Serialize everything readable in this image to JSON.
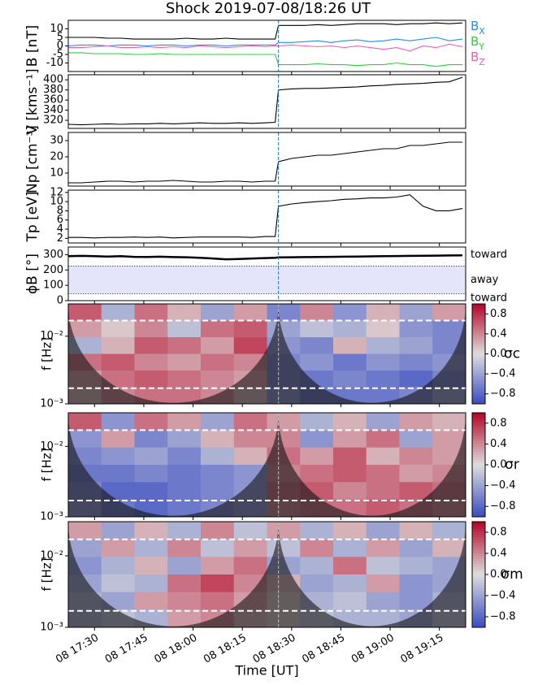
{
  "chart_data": [
    {
      "type": "line",
      "title": "Shock 2019-07-08/18:26 UT",
      "ylabel": "B [nT]",
      "ylim": [
        -15,
        15
      ],
      "yticks": [
        -10,
        -5,
        0,
        5,
        10
      ],
      "x": [
        "17:22",
        "17:26",
        "17:30",
        "17:34",
        "17:38",
        "17:42",
        "17:46",
        "17:50",
        "17:54",
        "17:58",
        "18:02",
        "18:06",
        "18:10",
        "18:14",
        "18:18",
        "18:22",
        "18:25",
        "18:26",
        "18:30",
        "18:34",
        "18:38",
        "18:42",
        "18:46",
        "18:50",
        "18:54",
        "18:58",
        "19:02",
        "19:06",
        "19:10",
        "19:14",
        "19:18",
        "19:22"
      ],
      "series": [
        {
          "color": "#000000",
          "values": [
            5,
            5,
            5,
            4.5,
            4.5,
            4,
            4,
            4,
            4,
            4.5,
            4,
            4,
            4.5,
            4,
            4,
            4,
            4,
            12,
            12,
            12,
            12.5,
            12,
            12.5,
            13,
            13,
            13,
            12.5,
            13,
            13,
            13.5,
            13,
            13.5
          ]
        },
        {
          "name": "BX",
          "color": "#1f8fe8",
          "values": [
            0,
            0.5,
            0.5,
            0,
            0.5,
            0.5,
            0,
            0.5,
            0.5,
            0,
            0.5,
            0.5,
            0,
            0.5,
            0.5,
            0.5,
            0.5,
            2,
            2,
            2.5,
            3,
            2,
            3,
            3.5,
            2.5,
            3,
            4,
            3,
            4,
            5,
            3,
            4
          ]
        },
        {
          "name": "BY",
          "color": "#2ecc40",
          "values": [
            -4,
            -4,
            -4.5,
            -4.5,
            -4.5,
            -5,
            -5,
            -4.5,
            -5,
            -5,
            -5,
            -5,
            -5,
            -5,
            -5,
            -5,
            -5,
            -11,
            -11,
            -11,
            -10.5,
            -11,
            -11,
            -11.5,
            -11,
            -11,
            -10,
            -11,
            -11,
            -12,
            -11,
            -11
          ]
        },
        {
          "name": "BZ",
          "color": "#ee5fb4",
          "values": [
            -1,
            -1,
            -0.5,
            0,
            -1,
            -1,
            -0.5,
            -1,
            -0.5,
            -1,
            0,
            -0.5,
            -1,
            -0.5,
            0,
            -0.5,
            0,
            0,
            0.5,
            0,
            -0.5,
            0,
            -1,
            0,
            -1,
            -2,
            -1,
            -3,
            0,
            -1,
            1,
            -0.5
          ]
        }
      ]
    },
    {
      "type": "line",
      "ylabel": "V [kms⁻¹]",
      "ylim": [
        304,
        410
      ],
      "yticks": [
        320,
        340,
        360,
        380,
        400
      ],
      "x": [
        "17:22",
        "17:26",
        "17:30",
        "17:34",
        "17:38",
        "17:42",
        "17:46",
        "17:50",
        "17:54",
        "17:58",
        "18:02",
        "18:06",
        "18:10",
        "18:14",
        "18:18",
        "18:22",
        "18:25",
        "18:26",
        "18:30",
        "18:34",
        "18:38",
        "18:42",
        "18:46",
        "18:50",
        "18:54",
        "18:58",
        "19:02",
        "19:06",
        "19:10",
        "19:14",
        "19:18",
        "19:22"
      ],
      "series": [
        {
          "color": "#000000",
          "values": [
            312,
            311,
            312,
            313,
            312,
            313,
            313,
            314,
            313,
            314,
            315,
            314,
            314,
            315,
            314,
            315,
            316,
            380,
            382,
            383,
            383,
            384,
            385,
            386,
            388,
            389,
            391,
            392,
            393,
            395,
            396,
            405
          ]
        }
      ]
    },
    {
      "type": "line",
      "ylabel": "Np [cm⁻³]",
      "ylim": [
        2,
        35
      ],
      "yticks": [
        10,
        20,
        30
      ],
      "x": [
        "17:22",
        "17:26",
        "17:30",
        "17:34",
        "17:38",
        "17:42",
        "17:46",
        "17:50",
        "17:54",
        "17:58",
        "18:02",
        "18:06",
        "18:10",
        "18:14",
        "18:18",
        "18:22",
        "18:25",
        "18:26",
        "18:30",
        "18:34",
        "18:38",
        "18:42",
        "18:46",
        "18:50",
        "18:54",
        "18:58",
        "19:02",
        "19:06",
        "19:10",
        "19:14",
        "19:18",
        "19:22"
      ],
      "series": [
        {
          "color": "#000000",
          "values": [
            4,
            4,
            4.5,
            5,
            5,
            4.5,
            5,
            5,
            5.5,
            5,
            4.5,
            4.5,
            5,
            5,
            4.5,
            5,
            5,
            17,
            19,
            20,
            21,
            21,
            22,
            23,
            24,
            25,
            25,
            27,
            27,
            28,
            29,
            29
          ]
        }
      ]
    },
    {
      "type": "line",
      "ylabel": "Tp [eV]",
      "ylim": [
        1,
        12.5
      ],
      "yticks": [
        2,
        4,
        6,
        8,
        10,
        12
      ],
      "x": [
        "17:22",
        "17:26",
        "17:30",
        "17:34",
        "17:38",
        "17:42",
        "17:46",
        "17:50",
        "17:54",
        "17:58",
        "18:02",
        "18:06",
        "18:10",
        "18:14",
        "18:18",
        "18:22",
        "18:25",
        "18:26",
        "18:30",
        "18:34",
        "18:38",
        "18:42",
        "18:46",
        "18:50",
        "18:54",
        "18:58",
        "19:02",
        "19:06",
        "19:10",
        "19:14",
        "19:18",
        "19:22"
      ],
      "series": [
        {
          "color": "#000000",
          "values": [
            2.2,
            2.2,
            2.1,
            2.2,
            2.2,
            2.3,
            2.2,
            2.3,
            2.1,
            2.2,
            2.3,
            2.3,
            2.3,
            2.3,
            2.2,
            2.4,
            2.4,
            9,
            9.5,
            9.8,
            10,
            10.2,
            10.5,
            10.6,
            10.8,
            10.8,
            11,
            11.5,
            9,
            8,
            8,
            8.5
          ]
        }
      ]
    },
    {
      "type": "line",
      "ylabel": "ϕB [°]",
      "ylim": [
        0,
        350
      ],
      "yticks": [
        0,
        100,
        200,
        300
      ],
      "sectors": [
        45,
        225
      ],
      "annotations": [
        {
          "text": "toward",
          "y": 300
        },
        {
          "text": "away",
          "y": 135
        },
        {
          "text": "toward",
          "y": 15
        }
      ],
      "x": [
        "17:22",
        "17:26",
        "17:30",
        "17:34",
        "17:38",
        "17:42",
        "17:46",
        "17:50",
        "17:54",
        "17:58",
        "18:02",
        "18:06",
        "18:10",
        "18:14",
        "18:18",
        "18:22",
        "18:25",
        "18:26",
        "18:30",
        "18:34",
        "18:38",
        "18:42",
        "18:46",
        "18:50",
        "18:54",
        "18:58",
        "19:02",
        "19:06",
        "19:10",
        "19:14",
        "19:18",
        "19:22"
      ],
      "series": [
        {
          "color": "#000000",
          "values": [
            290,
            292,
            290,
            288,
            290,
            286,
            285,
            287,
            284,
            283,
            280,
            275,
            270,
            272,
            275,
            278,
            280,
            282,
            283,
            284,
            285,
            286,
            287,
            288,
            289,
            290,
            291,
            292,
            293,
            294,
            295,
            296
          ]
        }
      ]
    },
    {
      "type": "heatmap",
      "ylabel": "f [Hz]",
      "cbar_label": "σc",
      "log_y": true,
      "ylim": [
        0.001,
        0.03
      ],
      "yticks": [
        {
          "value": 0.001,
          "label": "10⁻³"
        },
        {
          "value": 0.01,
          "label": "10⁻²"
        }
      ],
      "hlines": [
        0.017,
        0.0017
      ],
      "clim": [
        -1,
        1
      ],
      "cticks": [
        0.8,
        0.4,
        {
          "value": 0,
          "label": "0.0"
        },
        {
          "value": -0.4,
          "label": "−0.4"
        },
        {
          "value": -0.8,
          "label": "−0.8"
        }
      ],
      "z": [
        [
          0.6,
          -0.3,
          0.5,
          0.2,
          -0.4,
          0.3,
          -0.6,
          0.4,
          -0.5,
          0.2,
          -0.4,
          0.3
        ],
        [
          0.3,
          0.1,
          0.4,
          -0.2,
          0.5,
          0.6,
          -0.4,
          -0.2,
          -0.3,
          0.1,
          -0.5,
          -0.6
        ],
        [
          -0.3,
          0.2,
          0.6,
          0.5,
          0.3,
          0.7,
          -0.5,
          -0.6,
          0.2,
          -0.3,
          -0.4,
          -0.6
        ],
        [
          0.5,
          0.6,
          0.4,
          0.3,
          0.5,
          0.4,
          -0.6,
          -0.5,
          -0.7,
          -0.5,
          -0.6,
          -0.5
        ],
        [
          0.3,
          0.5,
          0.6,
          0.5,
          0.4,
          0.3,
          -0.6,
          -0.7,
          -0.6,
          -0.7,
          -0.8,
          -0.6
        ],
        [
          0.2,
          0.4,
          0.5,
          0.5,
          0.4,
          0.2,
          -0.5,
          -0.7,
          -0.7,
          -0.7,
          -0.6,
          -0.4
        ]
      ]
    },
    {
      "type": "heatmap",
      "ylabel": "f [Hz]",
      "cbar_label": "σr",
      "log_y": true,
      "ylim": [
        0.001,
        0.03
      ],
      "yticks": [
        {
          "value": 0.001,
          "label": "10⁻³"
        },
        {
          "value": 0.01,
          "label": "10⁻²"
        }
      ],
      "hlines": [
        0.017,
        0.0017
      ],
      "clim": [
        -1,
        1
      ],
      "cticks": [
        0.8,
        0.4,
        {
          "value": 0,
          "label": "0.0"
        },
        {
          "value": -0.4,
          "label": "−0.4"
        },
        {
          "value": -0.8,
          "label": "−0.8"
        }
      ],
      "z": [
        [
          0.6,
          -0.5,
          0.5,
          0.3,
          -0.4,
          0.5,
          0.3,
          -0.3,
          0.2,
          -0.4,
          0.3,
          0.2
        ],
        [
          -0.5,
          0.3,
          -0.6,
          -0.4,
          0.2,
          0.4,
          0.4,
          -0.5,
          0.3,
          0.5,
          -0.4,
          0.3
        ],
        [
          -0.6,
          -0.5,
          -0.4,
          -0.6,
          -0.3,
          0.2,
          0.5,
          0.3,
          0.6,
          0.2,
          0.4,
          0.3
        ],
        [
          -0.7,
          -0.7,
          -0.6,
          -0.7,
          -0.6,
          -0.5,
          0.4,
          0.5,
          0.6,
          0.5,
          0.3,
          0.4
        ],
        [
          -0.6,
          -0.8,
          -0.8,
          -0.7,
          -0.6,
          -0.5,
          0.5,
          0.6,
          0.4,
          0.5,
          0.6,
          0.5
        ],
        [
          -0.5,
          -0.7,
          -0.8,
          -0.7,
          -0.6,
          -0.5,
          0.4,
          0.5,
          0.5,
          0.6,
          0.5,
          0.4
        ]
      ]
    },
    {
      "type": "heatmap",
      "ylabel": "f [Hz]",
      "cbar_label": "σm",
      "log_y": true,
      "ylim": [
        0.001,
        0.03
      ],
      "yticks": [
        {
          "value": 0.001,
          "label": "10⁻³"
        },
        {
          "value": 0.01,
          "label": "10⁻²"
        }
      ],
      "hlines": [
        0.017,
        0.0017
      ],
      "clim": [
        -1,
        1
      ],
      "cticks": [
        0.8,
        0.4,
        {
          "value": 0,
          "label": "0.0"
        },
        {
          "value": -0.4,
          "label": "−0.4"
        },
        {
          "value": -0.8,
          "label": "−0.8"
        }
      ],
      "xlim": [
        "17:22",
        "19:23"
      ],
      "vline": "18:26",
      "xlabel": "Time [UT]",
      "xticks": [
        {
          "value": "17:30",
          "label": "08 17:30"
        },
        {
          "value": "17:45",
          "label": "08 17:45"
        },
        {
          "value": "18:00",
          "label": "08 18:00"
        },
        {
          "value": "18:15",
          "label": "08 18:15"
        },
        {
          "value": "18:30",
          "label": "08 18:30"
        },
        {
          "value": "18:45",
          "label": "08 18:45"
        },
        {
          "value": "19:00",
          "label": "08 19:00"
        },
        {
          "value": "19:15",
          "label": "08 19:15"
        }
      ],
      "z": [
        [
          0.3,
          -0.4,
          0.2,
          -0.3,
          0.4,
          -0.2,
          0.3,
          -0.3,
          0.2,
          -0.4,
          0.2,
          -0.3
        ],
        [
          -0.4,
          0.3,
          -0.3,
          0.4,
          -0.2,
          0.3,
          -0.2,
          0.4,
          -0.3,
          0.3,
          -0.4,
          0.2
        ],
        [
          -0.5,
          -0.3,
          0.2,
          -0.4,
          0.3,
          0.5,
          -0.4,
          -0.3,
          0.5,
          -0.2,
          -0.3,
          -0.4
        ],
        [
          -0.4,
          -0.2,
          -0.3,
          0.5,
          0.7,
          0.4,
          0.2,
          -0.4,
          -0.3,
          0.3,
          -0.5,
          -0.4
        ],
        [
          -0.3,
          -0.4,
          0.3,
          0.4,
          0.5,
          0.3,
          0.1,
          -0.3,
          -0.2,
          -0.4,
          -0.5,
          -0.3
        ],
        [
          -0.3,
          -0.2,
          -0.3,
          0.3,
          0.4,
          0.2,
          0.1,
          -0.2,
          -0.3,
          -0.3,
          -0.4,
          -0.2
        ]
      ]
    }
  ]
}
